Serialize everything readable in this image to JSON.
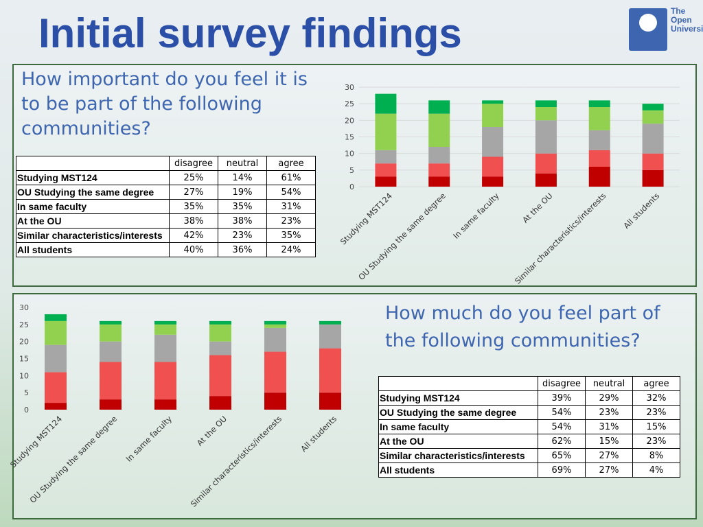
{
  "title": "Initial survey findings",
  "logo": {
    "line1": "The Open",
    "line2": "University"
  },
  "colors": {
    "dark_red": "#c00000",
    "red": "#f05050",
    "grey": "#a6a6a6",
    "light_green": "#92d050",
    "green": "#00b050"
  },
  "section1": {
    "question": "How important do you feel it is to be part of the following communities?",
    "table": {
      "headers": [
        "disagree",
        "neutral",
        "agree"
      ],
      "rows": [
        {
          "label": "Studying MST124",
          "disagree": "25%",
          "neutral": "14%",
          "agree": "61%"
        },
        {
          "label": "OU Studying the same degree",
          "disagree": "27%",
          "neutral": "19%",
          "agree": "54%"
        },
        {
          "label": "In same faculty",
          "disagree": "35%",
          "neutral": "35%",
          "agree": "31%"
        },
        {
          "label": "At the OU",
          "disagree": "38%",
          "neutral": "38%",
          "agree": "23%"
        },
        {
          "label": "Similar characteristics/interests",
          "disagree": "42%",
          "neutral": "23%",
          "agree": "35%"
        },
        {
          "label": "All students",
          "disagree": "40%",
          "neutral": "36%",
          "agree": "24%"
        }
      ]
    }
  },
  "section2": {
    "question": "How much do you feel part of the following communities?",
    "table": {
      "headers": [
        "disagree",
        "neutral",
        "agree"
      ],
      "rows": [
        {
          "label": "Studying MST124",
          "disagree": "39%",
          "neutral": "29%",
          "agree": "32%"
        },
        {
          "label": "OU Studying the same degree",
          "disagree": "54%",
          "neutral": "23%",
          "agree": "23%"
        },
        {
          "label": "In same faculty",
          "disagree": "54%",
          "neutral": "31%",
          "agree": "15%"
        },
        {
          "label": "At the OU",
          "disagree": "62%",
          "neutral": "15%",
          "agree": "23%"
        },
        {
          "label": "Similar characteristics/interests",
          "disagree": "65%",
          "neutral": "27%",
          "agree": "8%"
        },
        {
          "label": "All students",
          "disagree": "69%",
          "neutral": "27%",
          "agree": "4%"
        }
      ]
    }
  },
  "chart_data": [
    {
      "type": "bar",
      "stacked": true,
      "categories": [
        "Studying MST124",
        "OU Studying the same degree",
        "In same faculty",
        "At the OU",
        "Similar characteristics/interests",
        "All students"
      ],
      "series": [
        {
          "color": "#c00000",
          "values": [
            3,
            3,
            3,
            4,
            6,
            5
          ]
        },
        {
          "color": "#f05050",
          "values": [
            4,
            4,
            6,
            6,
            5,
            5
          ]
        },
        {
          "color": "#a6a6a6",
          "values": [
            4,
            5,
            9,
            10,
            6,
            9
          ]
        },
        {
          "color": "#92d050",
          "values": [
            11,
            10,
            7,
            4,
            7,
            4
          ]
        },
        {
          "color": "#00b050",
          "values": [
            6,
            4,
            1,
            2,
            2,
            2
          ]
        }
      ],
      "ylim": [
        0,
        30
      ],
      "yticks": [
        0,
        5,
        10,
        15,
        20,
        25,
        30
      ],
      "grid": true,
      "legend": "none"
    },
    {
      "type": "bar",
      "stacked": true,
      "categories": [
        "Studying MST124",
        "OU Studying the same degree",
        "In same faculty",
        "At the OU",
        "Similar characteristics/interests",
        "All students"
      ],
      "series": [
        {
          "color": "#c00000",
          "values": [
            2,
            3,
            3,
            4,
            5,
            5
          ]
        },
        {
          "color": "#f05050",
          "values": [
            9,
            11,
            11,
            12,
            12,
            13
          ]
        },
        {
          "color": "#a6a6a6",
          "values": [
            8,
            6,
            8,
            4,
            7,
            7
          ]
        },
        {
          "color": "#92d050",
          "values": [
            7,
            5,
            3,
            5,
            1,
            0
          ]
        },
        {
          "color": "#00b050",
          "values": [
            2,
            1,
            1,
            1,
            1,
            1
          ]
        }
      ],
      "ylim": [
        0,
        30
      ],
      "yticks": [
        0,
        5,
        10,
        15,
        20,
        25,
        30
      ],
      "grid": false,
      "legend": "none"
    }
  ]
}
